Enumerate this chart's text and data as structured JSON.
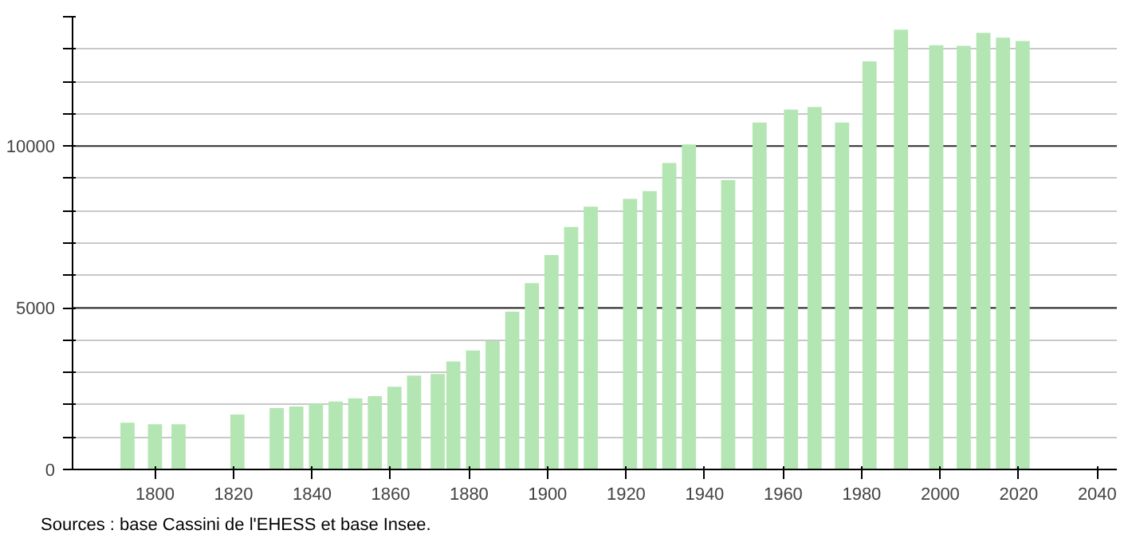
{
  "chart_data": {
    "type": "bar",
    "x": [
      1793,
      1800,
      1806,
      1821,
      1831,
      1836,
      1841,
      1846,
      1851,
      1856,
      1861,
      1866,
      1872,
      1876,
      1881,
      1886,
      1891,
      1896,
      1901,
      1906,
      1911,
      1921,
      1926,
      1931,
      1936,
      1946,
      1954,
      1962,
      1968,
      1975,
      1982,
      1990,
      1999,
      2006,
      2011,
      2016,
      2021
    ],
    "values": [
      1450,
      1400,
      1400,
      1700,
      1900,
      1950,
      2030,
      2100,
      2200,
      2270,
      2560,
      2900,
      2950,
      3340,
      3680,
      3970,
      4880,
      5760,
      6630,
      7500,
      8130,
      8370,
      8610,
      9480,
      10050,
      8950,
      10730,
      11130,
      11210,
      10730,
      12620,
      13600,
      13120,
      13100,
      13500,
      13350,
      13250
    ],
    "color": "#b3e6b3",
    "xlim": [
      1779,
      2045
    ],
    "xticks": [
      1800,
      1820,
      1840,
      1860,
      1880,
      1900,
      1920,
      1940,
      1960,
      1980,
      2000,
      2020,
      2040
    ],
    "ylim": [
      0,
      14000
    ],
    "yticks": [
      0,
      {
        "value": 1000,
        "label": null
      },
      {
        "value": 2000,
        "label": null
      },
      {
        "value": 3000,
        "label": null
      },
      {
        "value": 4000,
        "label": null
      },
      5000,
      {
        "value": 6000,
        "label": null
      },
      {
        "value": 7000,
        "label": null
      },
      {
        "value": 8000,
        "label": null
      },
      {
        "value": 9000,
        "label": null
      },
      10000,
      {
        "value": 11000,
        "label": null
      },
      {
        "value": 12000,
        "label": null
      },
      {
        "value": 13000,
        "label": null
      },
      {
        "value": 14000,
        "label": null
      }
    ],
    "grid": "y",
    "annotations": [
      "Sources : base Cassini de l'EHESS et base Insee."
    ]
  }
}
